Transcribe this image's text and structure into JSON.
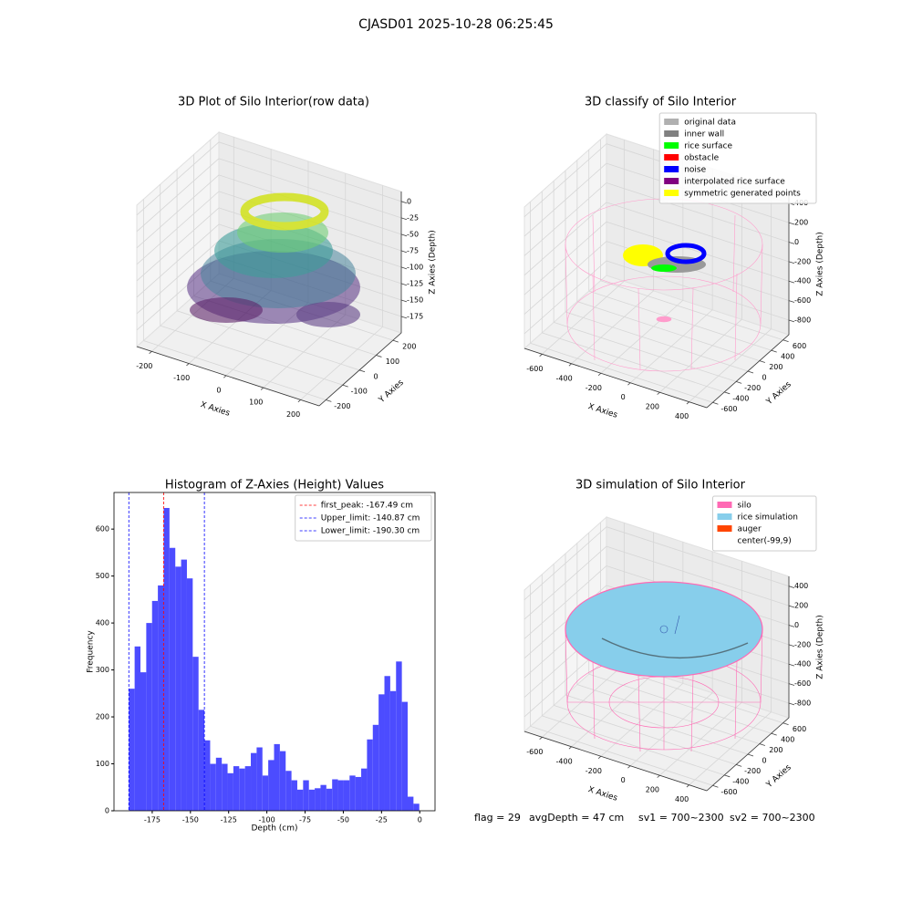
{
  "title": "CJASD01 2025-10-28 06:25:45",
  "annotations": [
    "flag = 29",
    "avgDepth = 47 cm",
    "sv1 = 700~2300",
    "sv2 = 700~2300"
  ],
  "chart_data": [
    {
      "type": "scatter3d",
      "title": "3D Plot of Silo Interior(row data)",
      "xlabel": "X Axies",
      "ylabel": "Y Axies",
      "zlabel": "Z Axies (Depth)",
      "xlim": [
        -240,
        250
      ],
      "ylim": [
        -240,
        250
      ],
      "zlim": [
        -200,
        15
      ],
      "xticks": [
        -200,
        -100,
        0,
        100,
        200
      ],
      "yticks": [
        -200,
        -100,
        0,
        100,
        200
      ],
      "zticks": [
        0,
        -25,
        -50,
        -75,
        -100,
        -125,
        -150,
        -175
      ],
      "grid": true
    },
    {
      "type": "scatter3d",
      "title": "3D classify of Silo Interior",
      "xlabel": "X Axies",
      "ylabel": "Y Axies",
      "zlabel": "Z Axies (Depth)",
      "xlim": [
        -720,
        520
      ],
      "ylim": [
        -700,
        700
      ],
      "zlim": [
        -950,
        500
      ],
      "xticks": [
        -600,
        -400,
        -200,
        0,
        200,
        400
      ],
      "yticks": [
        -600,
        -400,
        -200,
        0,
        200,
        400,
        600
      ],
      "zticks": [
        400,
        200,
        0,
        -200,
        -400,
        -600,
        -800
      ],
      "grid": true,
      "legend": "upper right",
      "series": [
        {
          "name": "original data",
          "color": "#b0b0b0"
        },
        {
          "name": "inner wall",
          "color": "#808080"
        },
        {
          "name": "rice surface",
          "color": "#00ff00"
        },
        {
          "name": "obstacle",
          "color": "#ff0000"
        },
        {
          "name": "noise",
          "color": "#0000ff"
        },
        {
          "name": "interpolated rice surface",
          "color": "#800080"
        },
        {
          "name": "symmetric generated points",
          "color": "#ffff00"
        }
      ]
    },
    {
      "type": "histogram",
      "title": "Histogram of Z-Axies (Height) Values",
      "xlabel": "Depth (cm)",
      "ylabel": "Frequency",
      "color": "#4c4cff",
      "xlim": [
        -200,
        10
      ],
      "ylim": [
        0,
        678
      ],
      "xticks": [
        -175,
        -150,
        -125,
        -100,
        -75,
        -50,
        -25,
        0
      ],
      "yticks": [
        0,
        100,
        200,
        300,
        400,
        500,
        600
      ],
      "bins": [
        -190.3,
        -186.5,
        -182.7,
        -178.9,
        -175.1,
        -171.3,
        -167.5,
        -163.7,
        -159.9,
        -156.1,
        -152.3,
        -148.5,
        -144.7,
        -140.9,
        -137.1,
        -133.3,
        -129.5,
        -125.7,
        -121.9,
        -118.1,
        -114.3,
        -110.5,
        -106.7,
        -102.9,
        -99.1,
        -95.3,
        -91.5,
        -87.7,
        -83.9,
        -80.1,
        -76.3,
        -72.5,
        -68.7,
        -64.9,
        -61.1,
        -57.3,
        -53.5,
        -49.7,
        -45.9,
        -42.1,
        -38.3,
        -34.5,
        -30.7,
        -26.9,
        -23.1,
        -19.3,
        -15.5,
        -11.7,
        -7.9,
        -4.1,
        -0.3
      ],
      "values": [
        260,
        350,
        295,
        400,
        447,
        480,
        645,
        560,
        520,
        535,
        495,
        328,
        215,
        150,
        100,
        113,
        100,
        80,
        95,
        90,
        95,
        123,
        135,
        75,
        108,
        142,
        127,
        85,
        65,
        45,
        65,
        45,
        48,
        55,
        47,
        67,
        65,
        65,
        75,
        72,
        90,
        152,
        183,
        248,
        287,
        255,
        318,
        232,
        30,
        15
      ],
      "legend": "upper right",
      "reference_lines": [
        {
          "name": "first_peak: -167.49 cm",
          "value": -167.49,
          "color": "#ff0000"
        },
        {
          "name": "Upper_limit: -140.87 cm",
          "value": -140.87,
          "color": "#0000ff"
        },
        {
          "name": "Lower_limit: -190.30 cm",
          "value": -190.3,
          "color": "#0000ff"
        }
      ]
    },
    {
      "type": "surface3d",
      "title": "3D simulation of Silo Interior",
      "xlabel": "X Axies",
      "ylabel": "Y Axies",
      "zlabel": "Z Axies (Depth)",
      "xlim": [
        -720,
        520
      ],
      "ylim": [
        -700,
        700
      ],
      "zlim": [
        -950,
        500
      ],
      "xticks": [
        -600,
        -400,
        -200,
        0,
        200,
        400
      ],
      "yticks": [
        -600,
        -400,
        -200,
        0,
        200,
        400,
        600
      ],
      "zticks": [
        400,
        200,
        0,
        -200,
        -400,
        -600,
        -800
      ],
      "grid": true,
      "legend": "upper right",
      "series": [
        {
          "name": "silo",
          "color": "#ff69b4"
        },
        {
          "name": "rice simulation",
          "color": "#87ceeb"
        },
        {
          "name": "auger",
          "color": "#ff4500"
        },
        {
          "name": "center(-99,9)",
          "color": "#ffffff"
        }
      ]
    }
  ]
}
